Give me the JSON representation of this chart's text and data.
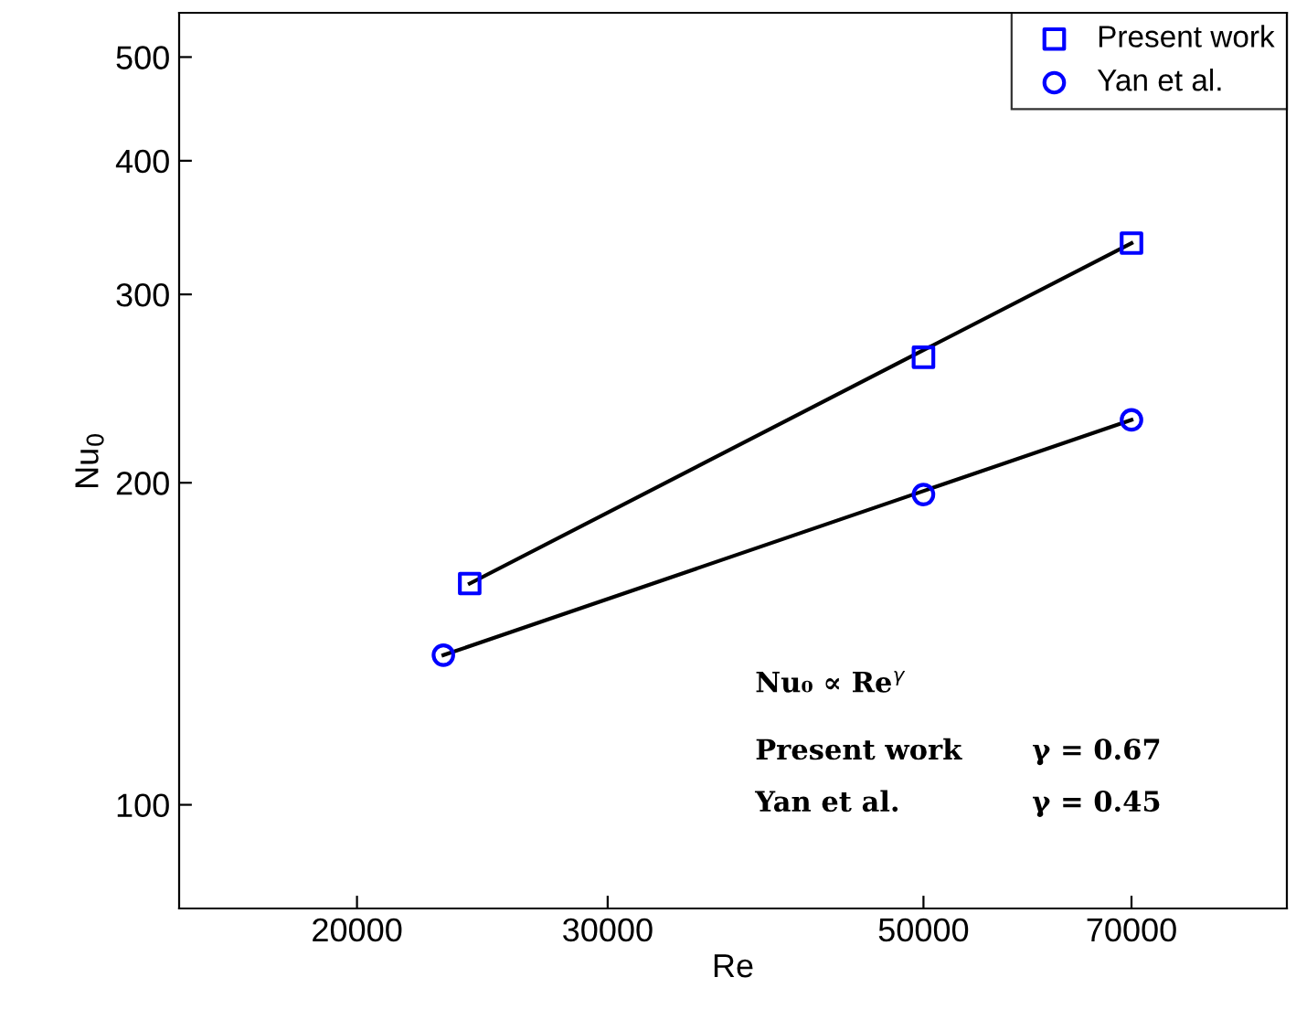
{
  "chart_data": {
    "type": "scatter",
    "xlabel": "Re",
    "ylabel": "Nu$_{0}$",
    "log": "xy",
    "xlim": [
      15000,
      90000
    ],
    "xticks": [
      20000,
      30000,
      50000,
      70000
    ],
    "ylim": [
      80,
      550
    ],
    "yticks": [
      100,
      200,
      300,
      400,
      500
    ],
    "series": [
      {
        "name": "Present work",
        "color": "#0000ff",
        "marker": "square",
        "x": [
          24000,
          50000,
          70000
        ],
        "values": [
          161,
          262,
          335
        ]
      },
      {
        "name": "Yan et al.",
        "color": "#0000ff",
        "marker": "circle",
        "x": [
          23000,
          50000,
          70000
        ],
        "values": [
          138,
          195,
          229
        ]
      },
      {
        "type": "line",
        "color": "#000000",
        "marker": "none",
        "x": [
          24000,
          70000
        ],
        "values": [
          161,
          335
        ]
      },
      {
        "type": "line",
        "color": "#000000",
        "marker": "none",
        "x": [
          23000,
          70000
        ],
        "values": [
          138,
          229
        ]
      }
    ],
    "annotations": [
      "Nu₀ ∝ Re$^{γ}$",
      "Present work",
      "γ = 0.67",
      "Yan et al.",
      "γ = 0.45"
    ],
    "legend": "top right",
    "grid": false
  }
}
